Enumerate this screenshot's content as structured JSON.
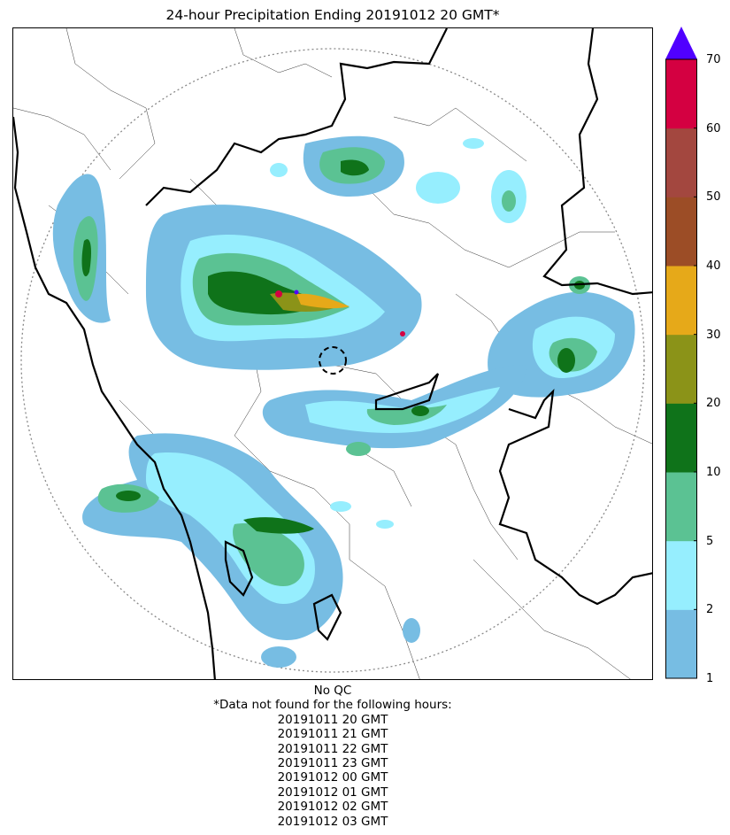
{
  "title": "24-hour Precipitation Ending 20191012 20 GMT*",
  "colorbar": {
    "ticks": [
      "1",
      "2",
      "5",
      "10",
      "20",
      "30",
      "40",
      "50",
      "60",
      "70"
    ],
    "bins": [
      {
        "from": 1,
        "to": 2,
        "color": "#77BDE3"
      },
      {
        "from": 2,
        "to": 5,
        "color": "#96EEFE"
      },
      {
        "from": 5,
        "to": 10,
        "color": "#5BC293"
      },
      {
        "from": 10,
        "to": 20,
        "color": "#0F731A"
      },
      {
        "from": 20,
        "to": 30,
        "color": "#8B9318"
      },
      {
        "from": 30,
        "to": 40,
        "color": "#E6A919"
      },
      {
        "from": 40,
        "to": 50,
        "color": "#9C4D26"
      },
      {
        "from": 50,
        "to": 60,
        "color": "#A3473F"
      },
      {
        "from": 60,
        "to": 70,
        "color": "#D40041"
      }
    ],
    "over_color": "#5000FF",
    "extend": "max"
  },
  "notes": {
    "qc": "No QC",
    "missing_header": "*Data not found for the following hours:",
    "missing_hours": [
      "20191011 20 GMT",
      "20191011 21 GMT",
      "20191011 22 GMT",
      "20191011 23 GMT",
      "20191012 00 GMT",
      "20191012 01 GMT",
      "20191012 02 GMT",
      "20191012 03 GMT"
    ]
  }
}
